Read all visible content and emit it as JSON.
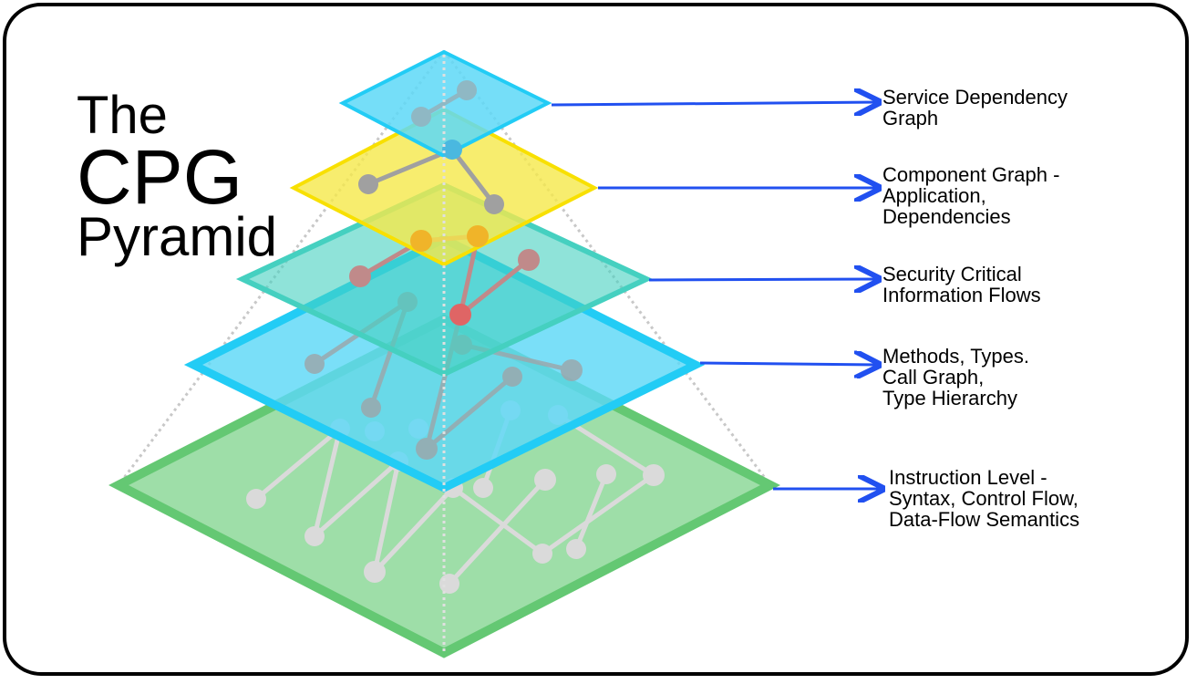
{
  "title": {
    "line1": "The",
    "line2": "CPG",
    "line3": "Pyramid"
  },
  "layers": [
    {
      "label_lines": [
        "Service Dependency",
        "Graph"
      ],
      "color": "#22ccf5"
    },
    {
      "label_lines": [
        "Component Graph -",
        "Application,",
        "Dependencies"
      ],
      "color": "#f8e000"
    },
    {
      "label_lines": [
        "Security Critical",
        "Information Flows"
      ],
      "color": "#45d0c0"
    },
    {
      "label_lines": [
        "Methods, Types.",
        "Call Graph,",
        "Type Hierarchy"
      ],
      "color": "#22ccf5"
    },
    {
      "label_lines": [
        "Instruction Level -",
        "Syntax, Control Flow,",
        "Data-Flow Semantics"
      ],
      "color": "#64c873"
    }
  ],
  "arrow_color": "#2150f0"
}
